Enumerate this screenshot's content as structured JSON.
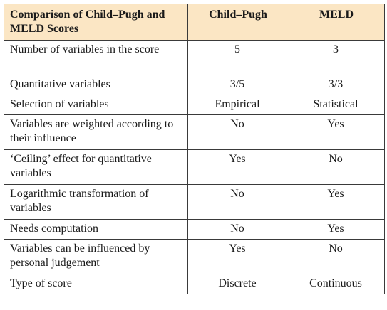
{
  "table": {
    "headers": [
      "Comparison of Child–Pugh and MELD Scores",
      "Child–Pugh",
      "MELD"
    ],
    "rows": [
      {
        "label": "Number of variables in the score",
        "child_pugh": "5",
        "meld": "3"
      },
      {
        "label": "Quantitative variables",
        "child_pugh": "3/5",
        "meld": "3/3"
      },
      {
        "label": "Selection of variables",
        "child_pugh": "Empirical",
        "meld": "Statistical"
      },
      {
        "label": "Variables are weighted according to their influence",
        "child_pugh": "No",
        "meld": "Yes"
      },
      {
        "label": "‘Ceiling’ effect for quantitative variables",
        "child_pugh": "Yes",
        "meld": "No"
      },
      {
        "label": "Logarithmic transformation of variables",
        "child_pugh": "No",
        "meld": "Yes"
      },
      {
        "label": "Needs computation",
        "child_pugh": "No",
        "meld": "Yes"
      },
      {
        "label": "Variables can be influenced by personal judgement",
        "child_pugh": "Yes",
        "meld": "No"
      },
      {
        "label": "Type of score",
        "child_pugh": "Discrete",
        "meld": "Continuous"
      }
    ]
  },
  "colors": {
    "header_background": "#fbe6c4",
    "border": "#3a3a3a"
  }
}
